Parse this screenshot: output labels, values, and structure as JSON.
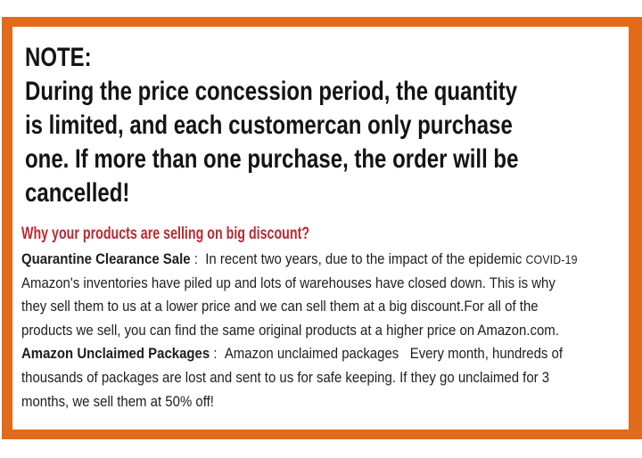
{
  "colors": {
    "frame_orange": "#E26A1B",
    "content_bg": "#FFFFFF",
    "note_color": "#141414",
    "heading_red": "#B82B33",
    "body_color": "#1E1E1E"
  },
  "note": {
    "text": "NOTE:\nDuring the price concession period, the quantity\nis limited, and each customercan only purchase\none. If more than one purchase, the order will be\ncancelled!"
  },
  "discount_section": {
    "heading": "Why your products are selling on big discount?",
    "paragraphs": [
      {
        "lead": "Quarantine Clearance Sale",
        "separator": " :  ",
        "text_before_covid": "In recent two years, due to the impact of the epidemic ",
        "covid_label": "COVID-19",
        "text_after_covid": "\nAmazon's inventories have piled up and lots of warehouses have closed down. This is why\nthey sell them to us at a lower price and we can sell them at a big discount.For all of the\nproducts we sell, you can find the same original products at a higher price on Amazon.com."
      },
      {
        "lead": "Amazon Unclaimed Packages",
        "separator": " :  ",
        "text": "Amazon unclaimed packages   Every month, hundreds of\nthousands of packages are lost and sent to us for safe keeping. If they go unclaimed for 3\nmonths, we sell them at 50% off!"
      }
    ]
  }
}
